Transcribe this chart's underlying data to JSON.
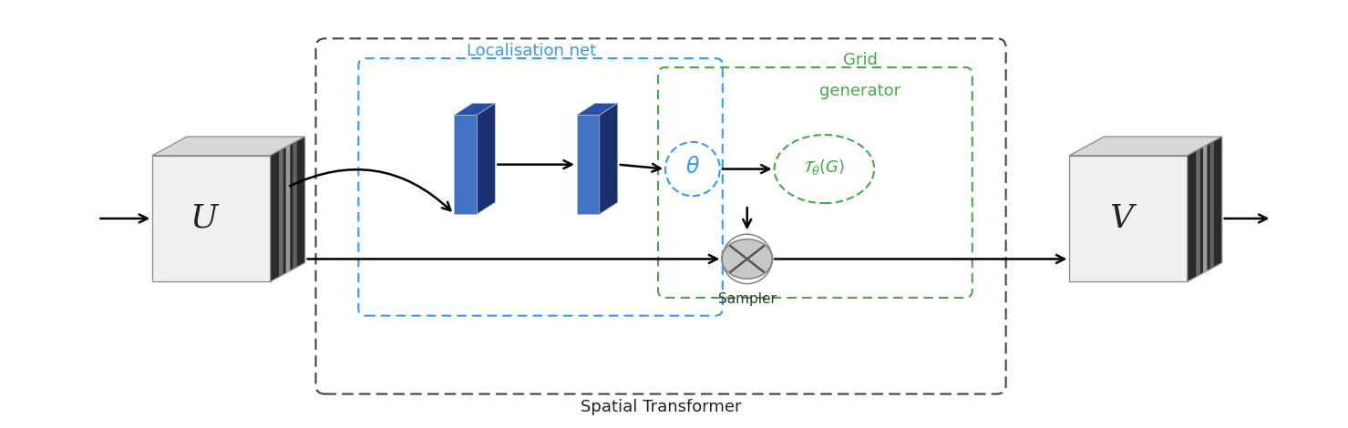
{
  "title": "Spatial Transformer",
  "title_fontsize": 13,
  "bg_color": "#ffffff",
  "fig_width": 14.79,
  "fig_height": 4.7,
  "localisation_label": "Localisation net",
  "grid_gen_label_line1": "Grid",
  "grid_gen_label_line2": "generator",
  "sampler_label": "Sampler",
  "U_label": "U",
  "V_label": "V",
  "blue_color": "#3399FF",
  "green_color": "#44AA44",
  "outer_box_color": "#444444",
  "neural_block_color": "#4472C4",
  "neural_block_dark": "#2a50a0",
  "neural_block_darkest": "#1a3070",
  "cube_front_color": "#f0f0f0",
  "cube_top_color": "#d8d8d8",
  "cube_right_dark": "#404040",
  "sampler_fill": "#c8c8c8",
  "sampler_edge": "#888888"
}
